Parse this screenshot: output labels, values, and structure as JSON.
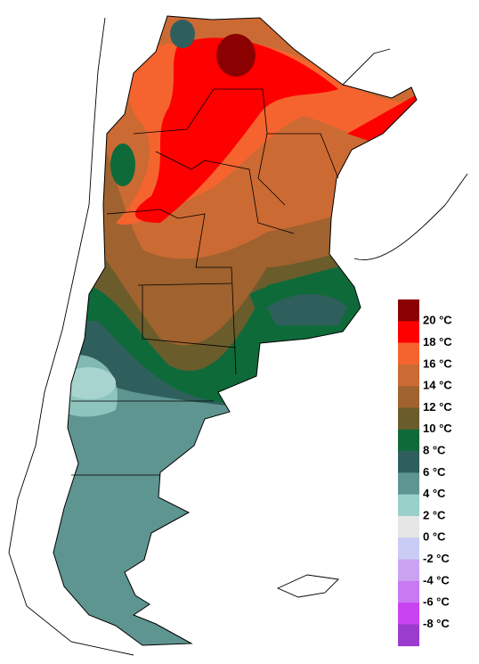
{
  "legend": {
    "labels": [
      "20 °C",
      "18 °C",
      "16 °C",
      "14 °C",
      "12 °C",
      "10 °C",
      "8 °C",
      "6 °C",
      "4 °C",
      "2 °C",
      "0 °C",
      "-2 °C",
      "-4 °C",
      "-6 °C",
      "-8 °C"
    ],
    "colors": [
      "#8b0000",
      "#ff0000",
      "#f5642e",
      "#cc6a34",
      "#a0622e",
      "#6b5c2c",
      "#0f6a3a",
      "#2f5f5c",
      "#5f9591",
      "#99d0c9",
      "#e6e6e6",
      "#c9ccf5",
      "#c9a3f2",
      "#c979f1",
      "#c943f1",
      "#9c3ccf"
    ]
  }
}
